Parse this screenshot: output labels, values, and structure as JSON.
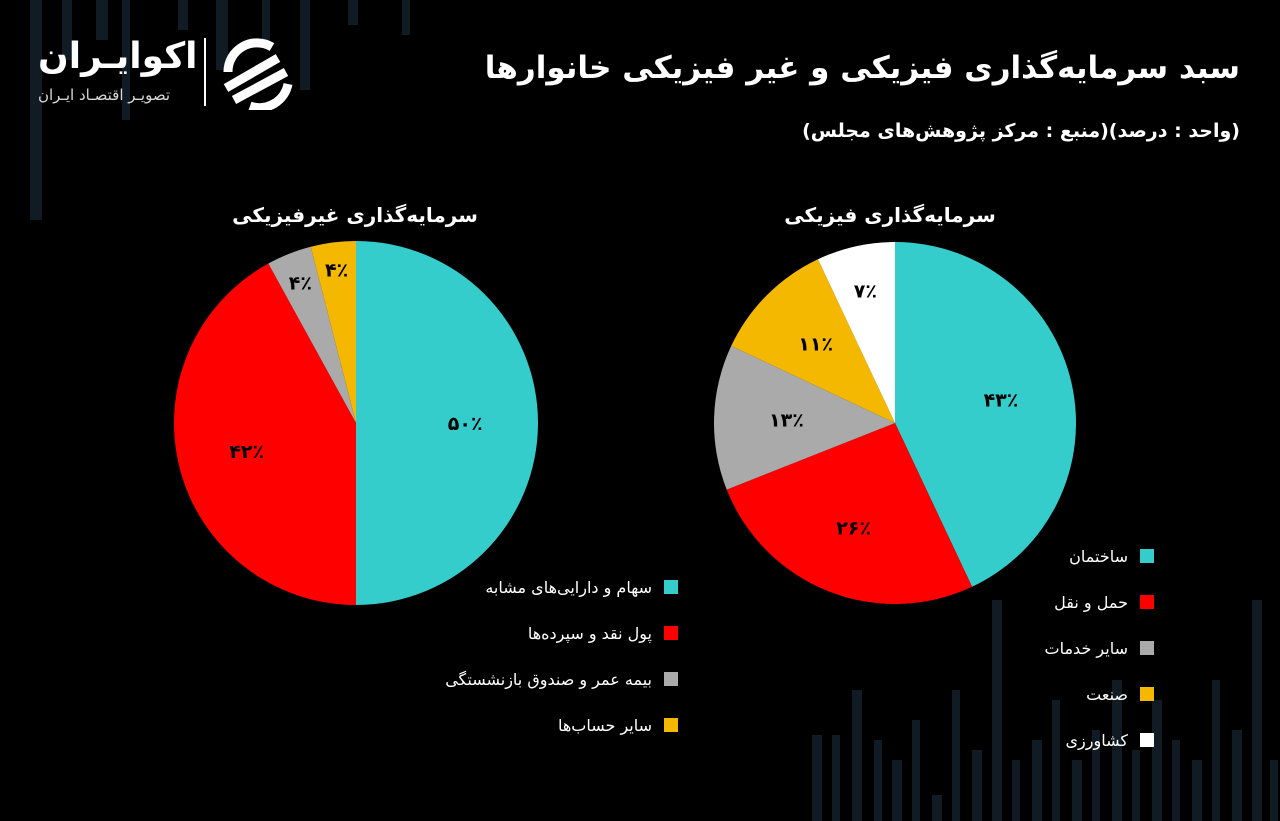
{
  "header": {
    "title": "سبد سرمایه‌گذاری فیزیکی و غیر فیزیکی خانوارها",
    "subtitle": "(واحد : درصد)(منبع : مرکز پژوهش‌های مجلس)"
  },
  "logo": {
    "name": "اکوایـران",
    "tagline": "تصویـر اقتصـاد ایـران"
  },
  "chart_data": [
    {
      "type": "pie",
      "title": "سرمایه‌گذاری فیزیکی",
      "labels": [
        "ساختمان",
        "حمل و نقل",
        "سایر خدمات",
        "صنعت",
        "کشاورزی"
      ],
      "values": [
        43,
        26,
        13,
        11,
        7
      ],
      "value_labels": [
        "۴۳٪",
        "۲۶٪",
        "۱۳٪",
        "۱۱٪",
        "۷٪"
      ],
      "colors": [
        "#35cccc",
        "#ff0000",
        "#aaaaaa",
        "#f5b800",
        "#ffffff"
      ],
      "start": "top",
      "direction": "clockwise"
    },
    {
      "type": "pie",
      "title": "سرمایه‌گذاری غیرفیزیکی",
      "labels": [
        "سهام و دارایی‌های مشابه",
        "پول نقد و سپرده‌ها",
        "بیمه عمر و صندوق بازنشستگی",
        "سایر حساب‌ها"
      ],
      "values": [
        50,
        42,
        4,
        4
      ],
      "value_labels": [
        "۵۰٪",
        "۴۲٪",
        "۴٪",
        "۴٪"
      ],
      "colors": [
        "#35cccc",
        "#ff0000",
        "#aaaaaa",
        "#f5b800"
      ],
      "start": "top",
      "direction": "clockwise"
    }
  ]
}
